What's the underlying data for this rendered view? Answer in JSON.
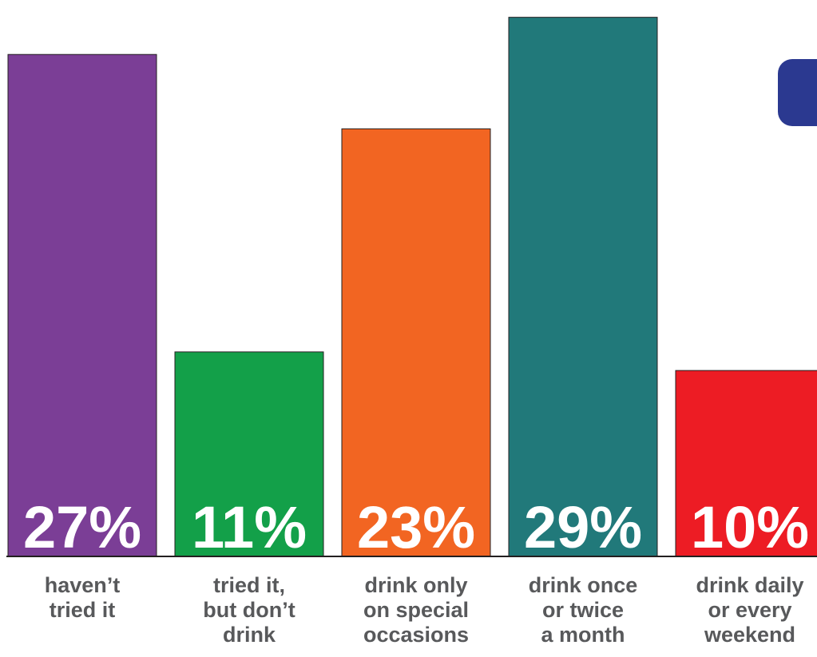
{
  "chart_data": {
    "type": "bar",
    "title": "",
    "xlabel": "",
    "ylabel": "",
    "ylim": [
      0,
      29.5
    ],
    "grid": false,
    "legend": "none",
    "categories": [
      "haven’t\ntried it",
      "tried it,\nbut don’t\ndrink",
      "drink only\non special\noccasions",
      "drink once\nor twice\na month",
      "drink daily\nor every\nweekend"
    ],
    "values": [
      27,
      11,
      23,
      29,
      10
    ],
    "value_labels": [
      "27%",
      "11%",
      "23%",
      "29%",
      "10%"
    ],
    "colors": [
      "#7b3e96",
      "#13a049",
      "#f26522",
      "#21797a",
      "#ed1c24"
    ]
  },
  "decoration": {
    "tab_color": "#2b3990"
  }
}
